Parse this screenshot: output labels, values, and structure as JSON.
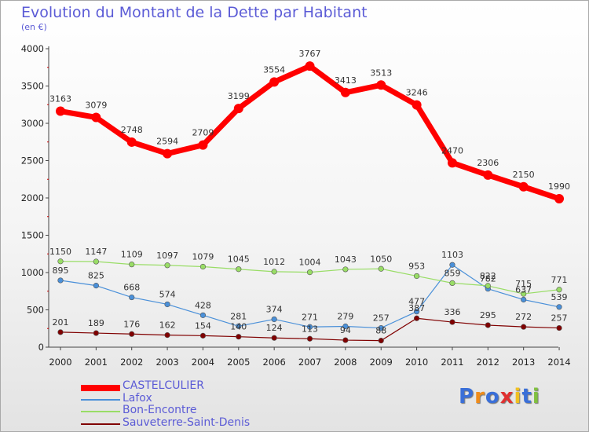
{
  "title": "Evolution du Montant de la Dette par Habitant",
  "subtitle": "(en €)",
  "chart_data": {
    "type": "line",
    "title": "Evolution du Montant de la Dette par Habitant",
    "subtitle": "(en €)",
    "xlabel": "",
    "ylabel": "",
    "categories": [
      "2000",
      "2001",
      "2002",
      "2003",
      "2004",
      "2005",
      "2006",
      "2007",
      "2008",
      "2009",
      "2010",
      "2011",
      "2012",
      "2013",
      "2014"
    ],
    "ylim": [
      0,
      4000
    ],
    "yticks": [
      "0",
      "500",
      "1000",
      "1500",
      "2000",
      "2500",
      "3000",
      "3500",
      "4000"
    ],
    "grid": false,
    "legend_position": "bottom-left",
    "series": [
      {
        "name": "CASTELCULIER",
        "color": "#ff0000",
        "values": [
          3163,
          3079,
          2748,
          2594,
          2709,
          3199,
          3554,
          3767,
          3413,
          3513,
          3246,
          2470,
          2306,
          2150,
          1990
        ],
        "labels": [
          "3163",
          "3079",
          "2748",
          "2594",
          "2709",
          "3199",
          "3554",
          "3767",
          "3413",
          "3513",
          "3246",
          "2470",
          "2306",
          "2150",
          "1990"
        ]
      },
      {
        "name": "Lafox",
        "color": "#4a90d9",
        "values": [
          895,
          825,
          668,
          574,
          428,
          281,
          374,
          271,
          279,
          257,
          477,
          1103,
          782,
          637,
          539
        ],
        "labels": [
          "895",
          "825",
          "668",
          "574",
          "428",
          "281",
          "374",
          "271",
          "279",
          "257",
          "477",
          "1103",
          "782",
          "637",
          "539"
        ]
      },
      {
        "name": "Bon-Encontre",
        "color": "#99dd66",
        "values": [
          1150,
          1147,
          1109,
          1097,
          1079,
          1045,
          1012,
          1004,
          1043,
          1050,
          953,
          859,
          822,
          715,
          771
        ],
        "labels": [
          "1150",
          "1147",
          "1109",
          "1097",
          "1079",
          "1045",
          "1012",
          "1004",
          "1043",
          "1050",
          "953",
          "859",
          "822",
          "715",
          "771"
        ]
      },
      {
        "name": "Sauveterre-Saint-Denis",
        "color": "#800000",
        "values": [
          201,
          189,
          176,
          162,
          154,
          140,
          124,
          113,
          94,
          88,
          387,
          336,
          295,
          272,
          257
        ],
        "labels": [
          "201",
          "189",
          "176",
          "162",
          "154",
          "140",
          "124",
          "113",
          "94",
          "88",
          "387",
          "336",
          "295",
          "272",
          "257"
        ]
      }
    ]
  },
  "logo": {
    "letters": [
      "P",
      "r",
      "o",
      "x",
      "i",
      "t",
      "i"
    ],
    "colors": [
      "#3a6fd8",
      "#f08c1a",
      "#3a6fd8",
      "#e03030",
      "#f0c020",
      "#3a6fd8",
      "#80c040"
    ]
  }
}
